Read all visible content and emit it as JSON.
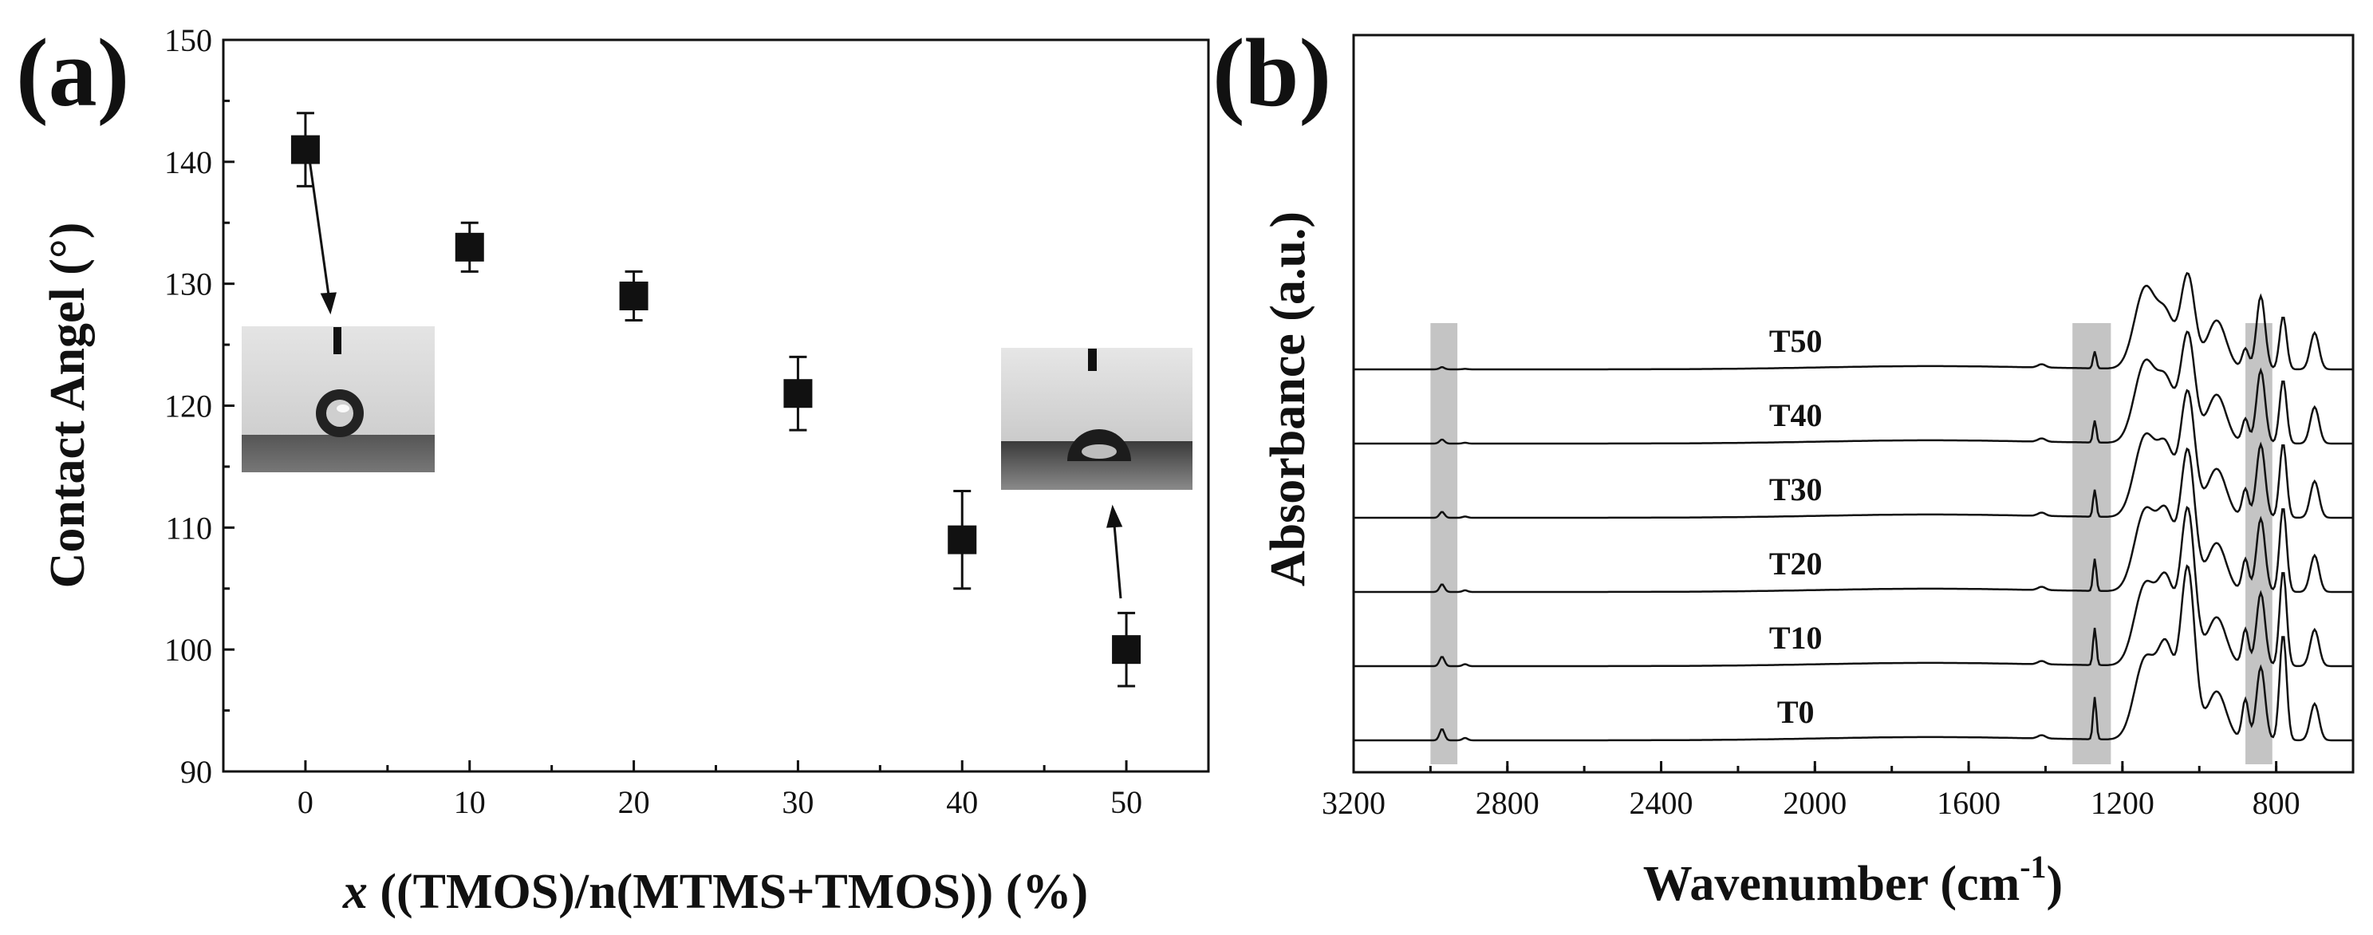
{
  "figure": {
    "panel_a_label": "(a)",
    "panel_b_label": "(b)"
  },
  "chart_data": [
    {
      "type": "scatter",
      "panel": "(a)",
      "title": "",
      "xlabel_italic": "x",
      "xlabel_rest": " ((TMOS)/n(MTMS+TMOS)) (%)",
      "ylabel": "Contact Angel (°)",
      "x": [
        0,
        10,
        20,
        30,
        40,
        50
      ],
      "y": [
        141,
        133,
        129,
        121,
        109,
        100
      ],
      "y_error": [
        3,
        2,
        2,
        3,
        4,
        3
      ],
      "xlim": [
        -5,
        55
      ],
      "ylim": [
        90,
        150
      ],
      "xticks": [
        0,
        10,
        20,
        30,
        40,
        50
      ],
      "yticks": [
        90,
        100,
        110,
        120,
        130,
        140,
        150
      ],
      "marker": "filled-square",
      "color": "#111111",
      "insets": [
        {
          "name": "water-droplet-photo-x0",
          "points_to_x": 0,
          "points_to_y": 141
        },
        {
          "name": "water-droplet-photo-x50",
          "points_to_x": 50,
          "points_to_y": 100
        }
      ]
    },
    {
      "type": "line",
      "panel": "(b)",
      "title": "",
      "xlabel": "Wavenumber (cm",
      "xlabel_sup": "-1",
      "xlabel_close": ")",
      "ylabel": "Absorbance (a.u.)",
      "xlim": [
        3200,
        600
      ],
      "x_reversed": true,
      "xticks": [
        3200,
        2800,
        2400,
        2000,
        1600,
        1200,
        800
      ],
      "yticks": [],
      "series": [
        {
          "name": "T50",
          "label": "T50",
          "baseline": 5
        },
        {
          "name": "T40",
          "label": "T40",
          "baseline": 4
        },
        {
          "name": "T30",
          "label": "T30",
          "baseline": 3
        },
        {
          "name": "T20",
          "label": "T20",
          "baseline": 2
        },
        {
          "name": "T10",
          "label": "T10",
          "baseline": 1
        },
        {
          "name": "T0",
          "label": "T0",
          "baseline": 0
        }
      ],
      "highlight_bands_cm1": [
        [
          3000,
          2930
        ],
        [
          1330,
          1230
        ],
        [
          880,
          810
        ]
      ],
      "band_color": "#c4c4c4",
      "color": "#111111"
    }
  ]
}
